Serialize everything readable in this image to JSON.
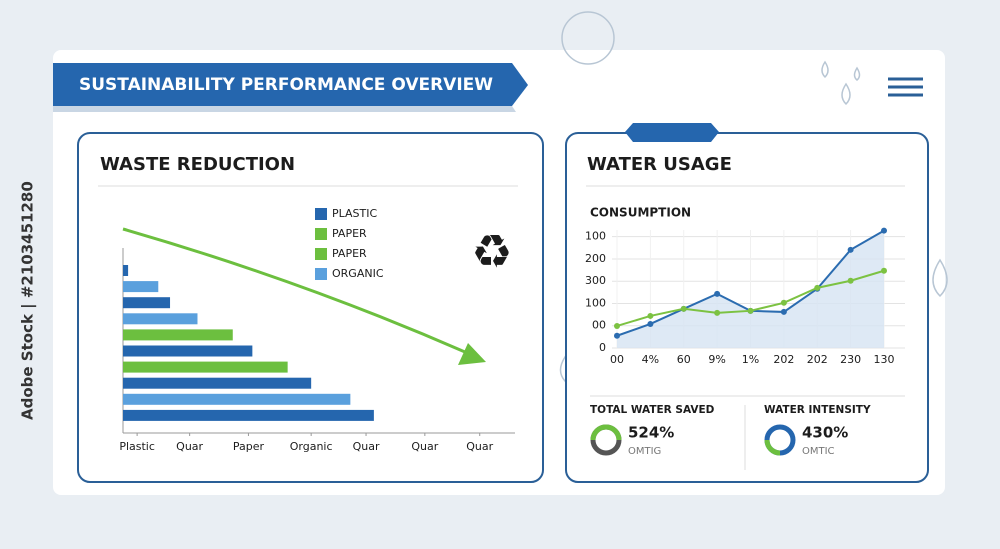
{
  "watermark": "Adobe Stock | #2103451280",
  "header": {
    "title": "SUSTAINABILITY PERFORMANCE OVERVIEW"
  },
  "chart_data": [
    {
      "type": "hbar",
      "title": "WASTE REDUCTION",
      "categories": [
        null,
        null,
        null,
        null,
        null,
        null,
        null,
        null,
        null,
        null
      ],
      "values": [
        1.3,
        9,
        12,
        19,
        28,
        33,
        42,
        48,
        58,
        64
      ],
      "colors": [
        "#2566ae",
        "#5aa0dd",
        "#2566ae",
        "#5aa0dd",
        "#6cbf3f",
        "#2566ae",
        "#6cbf3f",
        "#2566ae",
        "#5aa0dd",
        "#2566ae"
      ],
      "xlim": [
        0,
        100
      ],
      "xticks": [
        {
          "value": 3.6,
          "label": "Plastic"
        },
        {
          "value": 17,
          "label": "Quar"
        },
        {
          "value": 32,
          "label": "Paper"
        },
        {
          "value": 48,
          "label": "Organic"
        },
        {
          "value": 62,
          "label": "Quar"
        },
        {
          "value": 77,
          "label": "Quar"
        },
        {
          "value": 91,
          "label": "Quar"
        }
      ],
      "legend": [
        {
          "name": "PLASTIC",
          "color": "#2566ae"
        },
        {
          "name": "PAPER",
          "color": "#6cbf3f"
        },
        {
          "name": "PAPER",
          "color": "#6cbf3f"
        },
        {
          "name": "ORGANIC",
          "color": "#5aa0dd"
        }
      ]
    },
    {
      "type": "line",
      "title": "WATER USAGE",
      "subtitle": "CONSUMPTION",
      "categories": [
        "00",
        "4%",
        "60",
        "9%",
        "1%",
        "202",
        "202",
        "230",
        "130"
      ],
      "series": [
        {
          "color": "#2b6cb0",
          "fill": "#d6e4f3",
          "values": [
            0.55,
            1.08,
            1.76,
            2.43,
            1.67,
            1.62,
            2.66,
            4.41,
            5.27
          ]
        },
        {
          "color": "#7cc242",
          "values": [
            0.99,
            1.44,
            1.76,
            1.58,
            1.67,
            2.03,
            2.7,
            3.02,
            3.47
          ]
        }
      ],
      "ylim": [
        0,
        5.3
      ],
      "yticks": [
        0,
        {
          "value": 1,
          "label": "00"
        },
        {
          "value": 2,
          "label": "100"
        },
        {
          "value": 3,
          "label": "300"
        },
        {
          "value": 4,
          "label": "200"
        },
        {
          "value": 5,
          "label": "100"
        }
      ],
      "grid": true
    }
  ],
  "kpis": [
    {
      "label": "TOTAL WATER SAVED",
      "value": "524%",
      "unit": "OMTIG"
    },
    {
      "label": "WATER INTENSITY",
      "value": "430%",
      "unit": "OMTIC"
    }
  ]
}
